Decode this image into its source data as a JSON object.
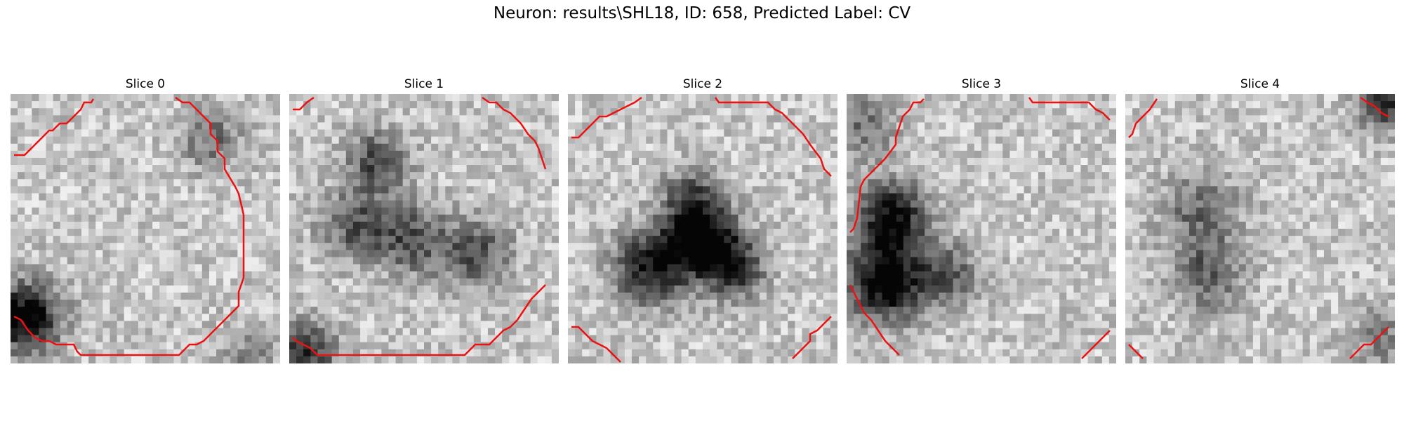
{
  "figure": {
    "title": "Neuron: results\\SHL18, ID: 658, Predicted Label: CV"
  },
  "panels": [
    {
      "title": "Slice 0",
      "seed": 11,
      "blobs": [
        [
          1.5,
          31,
          3.5,
          0.85
        ],
        [
          28,
          6,
          3,
          0.35
        ],
        [
          33,
          37,
          3,
          0.25
        ]
      ]
    },
    {
      "title": "Slice 1",
      "seed": 23,
      "blobs": [
        [
          12,
          9,
          3,
          0.5
        ],
        [
          9,
          18,
          3.5,
          0.45
        ],
        [
          17,
          20,
          3.5,
          0.45
        ],
        [
          26,
          22,
          3.5,
          0.45
        ],
        [
          2,
          36,
          3,
          0.6
        ]
      ]
    },
    {
      "title": "Slice 2",
      "seed": 37,
      "blobs": [
        [
          18,
          20,
          3.5,
          0.9
        ],
        [
          11,
          24,
          3.5,
          0.7
        ],
        [
          23,
          24,
          3,
          0.6
        ],
        [
          17,
          14,
          3,
          0.4
        ]
      ]
    },
    {
      "title": "Slice 3",
      "seed": 53,
      "blobs": [
        [
          6,
          17,
          3.5,
          0.75
        ],
        [
          5,
          26,
          4,
          0.85
        ],
        [
          2,
          4,
          3,
          0.35
        ],
        [
          14,
          25,
          3,
          0.4
        ]
      ]
    },
    {
      "title": "Slice 4",
      "seed": 71,
      "blobs": [
        [
          10,
          16,
          4,
          0.35
        ],
        [
          11,
          25,
          3.5,
          0.4
        ],
        [
          36,
          1,
          2.5,
          0.6
        ],
        [
          36,
          34,
          3,
          0.3
        ]
      ]
    }
  ]
}
